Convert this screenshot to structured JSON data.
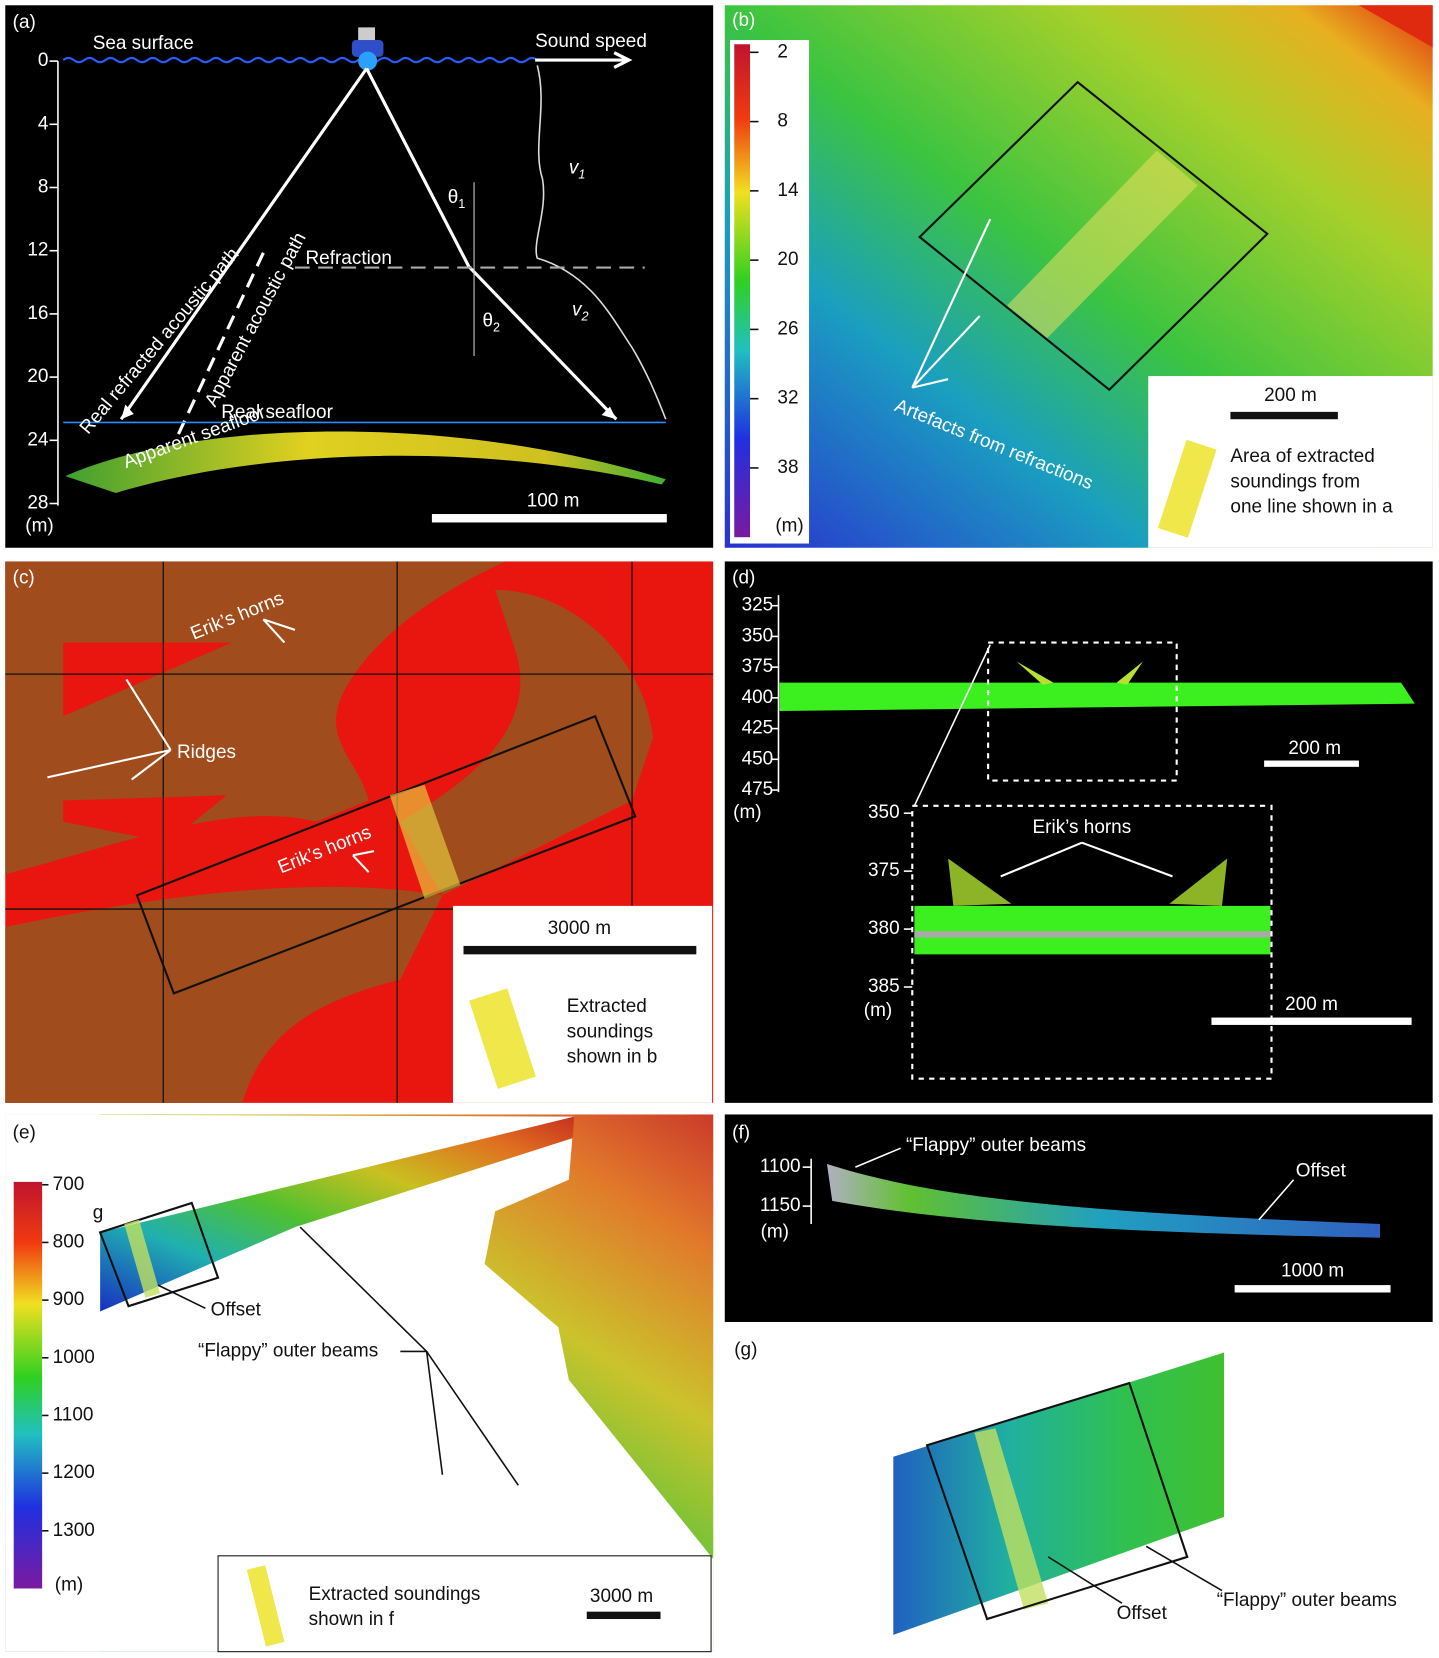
{
  "a": {
    "label": "(a)",
    "sea_surface": "Sea surface",
    "sound_speed": "Sound speed",
    "layer_velocities": [
      {
        "symbol": "v",
        "sub": "1"
      },
      {
        "symbol": "v",
        "sub": "2"
      }
    ],
    "angles": [
      {
        "symbol": "θ",
        "sub": "1"
      },
      {
        "symbol": "θ",
        "sub": "2"
      }
    ],
    "refraction": "Refraction",
    "real_path": "Real refracted acoustic path",
    "apparent_path": "Apparent acoustic path",
    "real_seafloor": "Real seafloor",
    "apparent_seafloor": "Apparent seafloor",
    "scale_bar": "100 m",
    "depth_axis": {
      "unit": "(m)",
      "lim": [
        0,
        28
      ],
      "ticks": [
        0,
        4,
        8,
        12,
        16,
        20,
        24,
        28
      ]
    }
  },
  "b": {
    "label": "(b)",
    "colorbar": {
      "unit": "(m)",
      "lim": [
        1.3,
        44
      ],
      "ticks": [
        2,
        8,
        14,
        20,
        26,
        32,
        38
      ]
    },
    "artefacts": "Artefacts from refractions",
    "scale_bar": "200 m",
    "legend": [
      "Area of extracted",
      "soundings from",
      "one line shown in a"
    ]
  },
  "c": {
    "label": "(c)",
    "horns_top": "Erik’s horns",
    "ridges": "Ridges",
    "horns_mid": "Erik’s horns",
    "scale_bar": "3000 m",
    "legend": [
      "Extracted",
      "soundings",
      "shown in b"
    ]
  },
  "d": {
    "label": "(d)",
    "depth_axis": {
      "unit": "(m)",
      "lim": [
        325,
        475
      ],
      "ticks": [
        325,
        350,
        375,
        400,
        425,
        450,
        475
      ]
    },
    "scale_bar": "200 m",
    "inset_axis": {
      "unit": "(m)",
      "ticks": [
        350,
        375,
        380,
        385
      ]
    },
    "horns": "Erik’s horns",
    "inset_scale_bar": "200 m"
  },
  "e": {
    "label": "(e)",
    "colorbar": {
      "unit": "(m)",
      "lim": [
        695,
        1400
      ],
      "ticks": [
        700,
        800,
        900,
        1000,
        1100,
        1200,
        1300
      ]
    },
    "g_marker": "g",
    "offset": "Offset",
    "flappy": "“Flappy” outer beams",
    "scale_bar": "3000 m",
    "legend": [
      "Extracted soundings",
      "shown in f"
    ]
  },
  "f": {
    "label": "(f)",
    "depth_axis": {
      "unit": "(m)",
      "lim": [
        1090,
        1170
      ],
      "ticks": [
        1100,
        1150
      ]
    },
    "flappy": "“Flappy” outer beams",
    "offset": "Offset",
    "scale_bar": "1000 m"
  },
  "g": {
    "label": "(g)",
    "offset": "Offset",
    "flappy": "“Flappy” outer beams"
  }
}
